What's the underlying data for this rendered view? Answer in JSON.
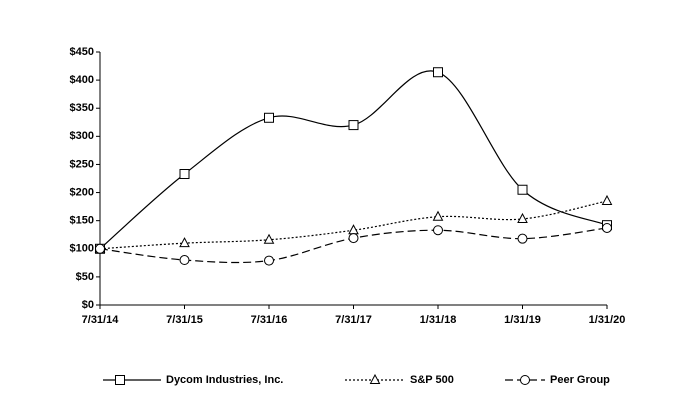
{
  "chart_data": {
    "type": "line",
    "categories": [
      "7/31/14",
      "7/31/15",
      "7/31/16",
      "7/31/17",
      "1/31/18",
      "1/31/19",
      "1/31/20"
    ],
    "series": [
      {
        "name": "Dycom Industries, Inc.",
        "color": "#000000",
        "marker": "square",
        "dash": "solid",
        "values": [
          100,
          233,
          333,
          320,
          414,
          205,
          142
        ]
      },
      {
        "name": "S&P 500",
        "color": "#000000",
        "marker": "triangle",
        "dash": "dotted",
        "values": [
          100,
          110,
          116,
          133,
          157,
          153,
          185
        ]
      },
      {
        "name": "Peer Group",
        "color": "#000000",
        "marker": "circle",
        "dash": "dashed",
        "values": [
          100,
          80,
          79,
          119,
          133,
          118,
          137
        ]
      }
    ],
    "ylim": [
      0,
      450
    ],
    "yticks": [
      {
        "value": 0,
        "label": "$0"
      },
      {
        "value": 50,
        "label": "$50"
      },
      {
        "value": 100,
        "label": "$100"
      },
      {
        "value": 150,
        "label": "$150"
      },
      {
        "value": 200,
        "label": "$200"
      },
      {
        "value": 250,
        "label": "$250"
      },
      {
        "value": 300,
        "label": "$300"
      },
      {
        "value": 350,
        "label": "$350"
      },
      {
        "value": 400,
        "label": "$400"
      },
      {
        "value": 450,
        "label": "$450"
      }
    ],
    "grid": false,
    "legend": "bottom"
  }
}
